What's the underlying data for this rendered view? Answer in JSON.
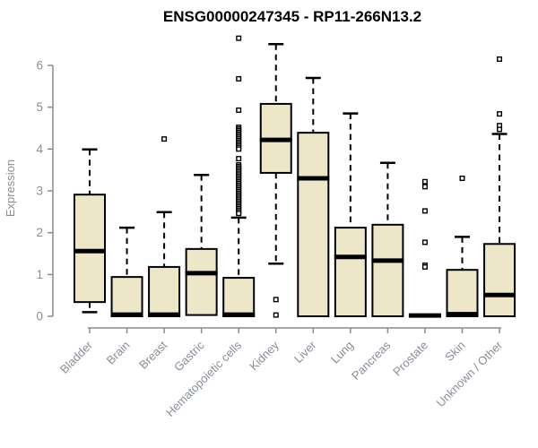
{
  "title": "ENSG00000247345 - RP11-266N13.2",
  "chart_data": {
    "type": "boxplot",
    "title": "ENSG00000247345 - RP11-266N13.2",
    "xlabel": "",
    "ylabel": "Expression",
    "ylim": [
      0,
      6.8
    ],
    "yticks": [
      0,
      1,
      2,
      3,
      4,
      5,
      6
    ],
    "grid": false,
    "legend": "none",
    "colors": {
      "box_fill": "#ede6c9",
      "box_stroke": "#000000",
      "median_stroke": "#000000",
      "whisker_stroke": "#000000",
      "outlier_stroke": "#000000",
      "outlier_fill": "#ffffff",
      "axis": "#8c8c8c",
      "tick_label": "#888e96",
      "title_color": "#000000",
      "background": "#ffffff"
    },
    "categories": [
      "Bladder",
      "Brain",
      "Breast",
      "Gastric",
      "Hematopoietic cells",
      "Kidney",
      "Liver",
      "Lung",
      "Pancreas",
      "Prostate",
      "Skin",
      "Unknown / Other"
    ],
    "series": [
      {
        "name": "Bladder",
        "whisker_low": 0.1,
        "q1": 0.34,
        "median": 1.56,
        "q3": 2.91,
        "whisker_high": 3.99,
        "outliers": []
      },
      {
        "name": "Brain",
        "whisker_low": 0,
        "q1": 0,
        "median": 0.04,
        "q3": 0.94,
        "whisker_high": 2.12,
        "outliers": []
      },
      {
        "name": "Breast",
        "whisker_low": 0,
        "q1": 0,
        "median": 0.04,
        "q3": 1.18,
        "whisker_high": 2.49,
        "outliers": [
          4.24
        ]
      },
      {
        "name": "Gastric",
        "whisker_low": 0.03,
        "q1": 0.03,
        "median": 1.03,
        "q3": 1.61,
        "whisker_high": 3.38,
        "outliers": []
      },
      {
        "name": "Hematopoietic cells",
        "whisker_low": 0,
        "q1": 0,
        "median": 0.04,
        "q3": 0.92,
        "whisker_high": 2.36,
        "outliers": [
          6.65,
          5.68,
          4.93,
          4.52,
          4.48,
          4.44,
          4.4,
          4.36,
          4.32,
          4.28,
          4.24,
          4.2,
          4.16,
          4.12,
          4.08,
          4.04,
          4.0,
          3.77,
          3.62,
          3.58,
          3.54,
          3.5,
          3.46,
          3.42,
          3.38,
          3.34,
          3.3,
          3.26,
          3.22,
          3.18,
          3.14,
          3.1,
          3.06,
          3.02,
          2.98,
          2.94,
          2.9,
          2.86,
          2.82,
          2.78,
          2.74,
          2.7,
          2.66,
          2.62,
          2.58,
          2.54,
          2.5,
          2.46
        ]
      },
      {
        "name": "Kidney",
        "whisker_low": 1.26,
        "q1": 3.43,
        "median": 4.22,
        "q3": 5.08,
        "whisker_high": 6.51,
        "outliers": [
          0.4,
          0.03
        ]
      },
      {
        "name": "Liver",
        "whisker_low": 0,
        "q1": 0,
        "median": 3.3,
        "q3": 4.39,
        "whisker_high": 5.7,
        "outliers": []
      },
      {
        "name": "Lung",
        "whisker_low": 0,
        "q1": 0,
        "median": 1.42,
        "q3": 2.12,
        "whisker_high": 4.85,
        "outliers": []
      },
      {
        "name": "Pancreas",
        "whisker_low": 0,
        "q1": 0,
        "median": 1.33,
        "q3": 2.19,
        "whisker_high": 3.67,
        "outliers": []
      },
      {
        "name": "Prostate",
        "whisker_low": 0,
        "q1": 0,
        "median": 0.02,
        "q3": 0.04,
        "whisker_high": 0.04,
        "outliers": [
          3.22,
          3.1,
          2.52,
          1.77,
          1.22,
          1.18
        ]
      },
      {
        "name": "Skin",
        "whisker_low": 0,
        "q1": 0,
        "median": 0.05,
        "q3": 1.11,
        "whisker_high": 1.9,
        "outliers": [
          3.3
        ]
      },
      {
        "name": "Unknown / Other",
        "whisker_low": 0,
        "q1": 0,
        "median": 0.51,
        "q3": 1.73,
        "whisker_high": 4.36,
        "outliers": [
          6.15,
          4.84,
          4.56,
          4.47
        ]
      }
    ]
  }
}
